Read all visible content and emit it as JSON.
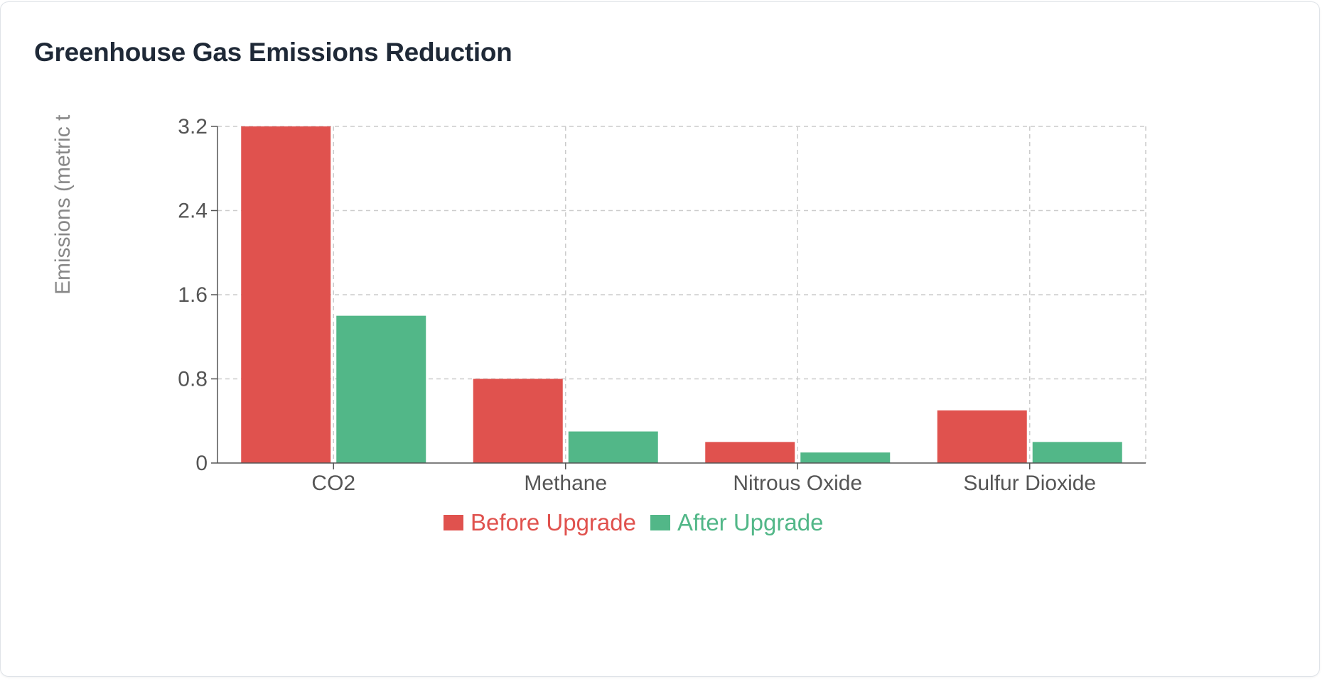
{
  "chart_data": {
    "type": "bar",
    "title": "Greenhouse Gas Emissions Reduction",
    "ylabel": "Emissions (metric t",
    "xlabel": "",
    "categories": [
      "CO2",
      "Methane",
      "Nitrous Oxide",
      "Sulfur Dioxide"
    ],
    "series": [
      {
        "name": "Before Upgrade",
        "color": "#e0524e",
        "values": [
          3.2,
          0.8,
          0.2,
          0.5
        ]
      },
      {
        "name": "After Upgrade",
        "color": "#52b788",
        "values": [
          1.4,
          0.3,
          0.1,
          0.2
        ]
      }
    ],
    "ylim": [
      0,
      3.2
    ],
    "yticks": [
      "0",
      "0.8",
      "1.6",
      "2.4",
      "3.2"
    ],
    "grid": true,
    "legend": "bottom"
  }
}
